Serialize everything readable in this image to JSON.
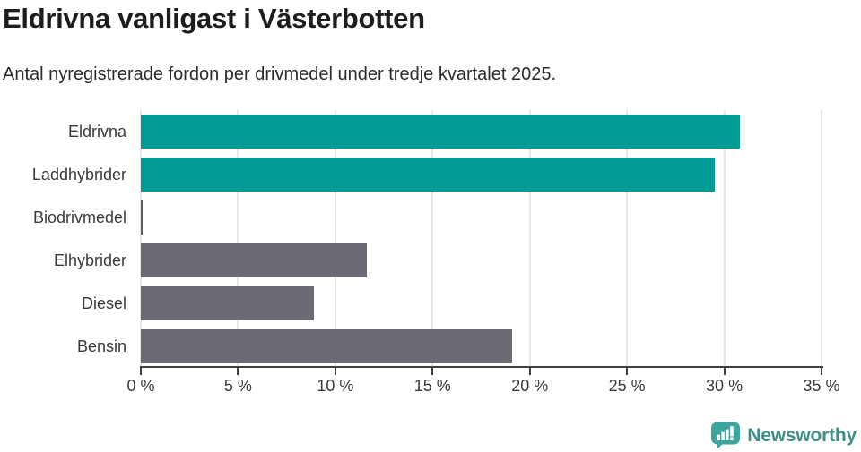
{
  "header": {
    "title": "Eldrivna vanligast i Västerbotten",
    "subtitle": "Antal nyregistrerade fordon per drivmedel under tredje kvartalet 2025."
  },
  "chart_data": {
    "type": "bar",
    "orientation": "horizontal",
    "title": "Eldrivna vanligast i Västerbotten",
    "subtitle": "Antal nyregistrerade fordon per drivmedel under tredje kvartalet 2025.",
    "categories": [
      "Eldrivna",
      "Laddhybrider",
      "Biodrivmedel",
      "Elhybrider",
      "Diesel",
      "Bensin"
    ],
    "values": [
      30.8,
      29.5,
      0.1,
      11.6,
      8.9,
      19.1
    ],
    "unit": "%",
    "xlim": [
      0,
      35
    ],
    "x_ticks": [
      0,
      5,
      10,
      15,
      20,
      25,
      30,
      35
    ],
    "x_tick_labels": [
      "0 %",
      "5 %",
      "10 %",
      "15 %",
      "20 %",
      "25 %",
      "30 %",
      "35 %"
    ],
    "bar_colors": [
      "#009b94",
      "#009b94",
      "#5a5a60",
      "#6b6a72",
      "#6b6a72",
      "#6b6a72"
    ],
    "grid": true,
    "legend": false
  },
  "colors": {
    "accent_teal": "#009b94",
    "neutral_gray": "#6b6a72",
    "thin_bar_gray": "#5a5a60",
    "axis": "#414144",
    "gridline": "#e7e7e9",
    "title_text": "#1d1d1b",
    "label_text": "#3a3a3a",
    "logo_icon": "#3ba59e",
    "logo_text": "#3f8e88"
  },
  "footer": {
    "brand": "Newsworthy"
  }
}
